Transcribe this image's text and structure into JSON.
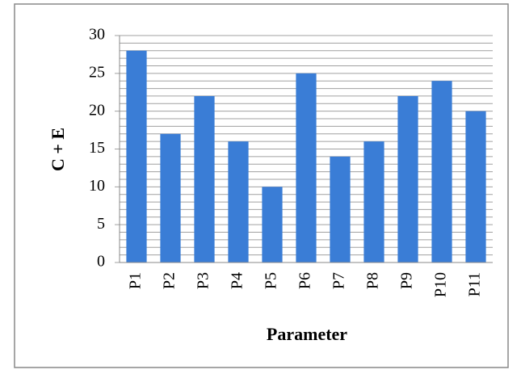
{
  "chart_data": {
    "type": "bar",
    "x_label": "Parameter",
    "y_label": "C + E",
    "categories": [
      "P1",
      "P2",
      "P3",
      "P4",
      "P5",
      "P6",
      "P7",
      "P8",
      "P9",
      "P10",
      "P11"
    ],
    "values": [
      28,
      17,
      22,
      16,
      10,
      25,
      14,
      16,
      22,
      24,
      20
    ],
    "color": "#3a7dd6",
    "ylim": [
      0,
      30
    ],
    "yticks": [
      0,
      5,
      10,
      15,
      20,
      25,
      30
    ],
    "minor_yticks": [
      1,
      2,
      3,
      4,
      6,
      7,
      8,
      9,
      11,
      12,
      13,
      14,
      16,
      17,
      18,
      19,
      21,
      22,
      23,
      24,
      26,
      27,
      28,
      29
    ],
    "grid": true
  }
}
